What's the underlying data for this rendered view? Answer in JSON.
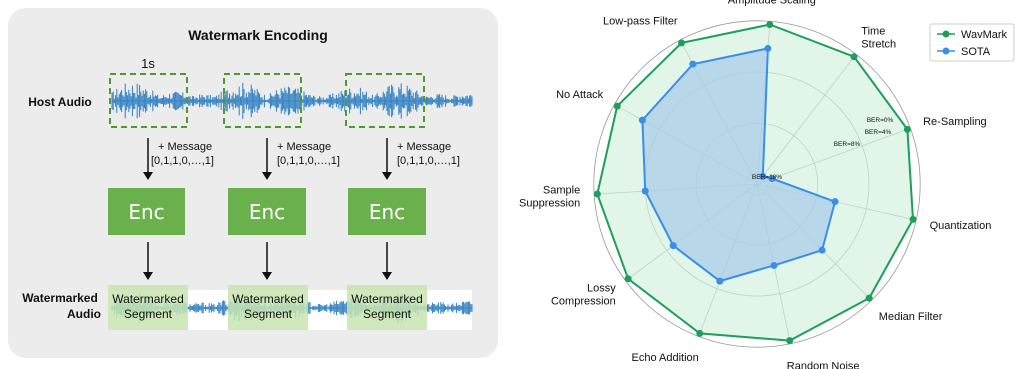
{
  "encoding": {
    "title": "Watermark Encoding",
    "segment_duration": "1s",
    "host_label": "Host Audio",
    "watermarked_label_line1": "Watermarked",
    "watermarked_label_line2": "Audio",
    "message_line1": "+ Message",
    "message_line2": "[0,1,1,0,…,1]",
    "encoder_label": "Enc",
    "segment_label_line1": "Watermarked",
    "segment_label_line2": "Segment",
    "colors": {
      "wave": "#2f7fc1",
      "dashed_box": "#4f9a2f",
      "encoder": "#6ab04c",
      "segment": "#c8e4b0"
    }
  },
  "chart_data": {
    "type": "radar",
    "axes": [
      "Amplitude Scaling",
      "Time Stretch",
      "Re-Sampling",
      "Quantization",
      "Median Filter",
      "Random Noise",
      "Echo Addition",
      "Lossy Compression",
      "Sample Suppression",
      "No Attack",
      "Low-pass Filter"
    ],
    "axis_lines": [
      [
        "Amplitude Scaling"
      ],
      [
        "Time",
        "Stretch"
      ],
      [
        "Re-Sampling"
      ],
      [
        "Quantization"
      ],
      [
        "Median Filter"
      ],
      [
        "Random Noise"
      ],
      [
        "Echo Addition"
      ],
      [
        "Lossy",
        "Compression"
      ],
      [
        "Sample",
        "Suppression"
      ],
      [
        "No Attack"
      ],
      [
        "Low-pass Filter"
      ]
    ],
    "ring_labels": [
      "BER=0%",
      "BER=4%",
      "BER=8%",
      "BER=18%"
    ],
    "series": [
      {
        "name": "WavMark",
        "color": "#1e9e5a",
        "fill": "#d3f0dd",
        "values": [
          1.0,
          1.0,
          1.0,
          1.0,
          1.0,
          1.0,
          1.0,
          1.0,
          1.0,
          1.0,
          1.0
        ]
      },
      {
        "name": "SOTA",
        "color": "#3a8ee6",
        "fill": "#a9cce8",
        "values": [
          0.85,
          0.06,
          0.1,
          0.5,
          0.58,
          0.52,
          0.65,
          0.65,
          0.7,
          0.82,
          0.85
        ]
      }
    ],
    "legend_position": "top-right"
  }
}
